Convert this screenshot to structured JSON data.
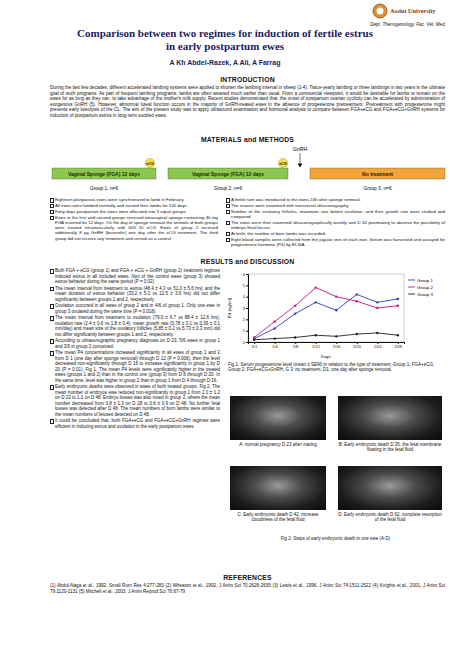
{
  "header": {
    "university": "Assiut University",
    "department": "Dept. Theriogenology, Fac. Vet. Med.",
    "title_lines": [
      "Comparison between two regimes for induction of fertile estrus",
      "in early postpartum ewes"
    ],
    "authors": "A Kh Abdel-Razek, A Ali, A Farrag"
  },
  "introduction": {
    "heading": "INTRODUCTION",
    "text": "During the last few decades, different accelerated lambing systems were applied to shorten the lambing interval in sheep (1-4). Twice-yearly lambing or three lambings in two years is the ultimate goal of such programs. As part of frequent lambing programs, lambs are often weaned much earlier than usual. From a commercial viewpoint, it would be desirable for lambs to remain on the ewes for as long as they can, to take advantage of the mother's milk supply. Recent studies demonstrated that, the onset of postpartum ovarian cyclicity can be accelerated by administration of exogenous GnRH (5). However, abnormal luteal function occurs in the majority of GnRH-treated ewes in the absence of progesterone pretreatment. Pretreatment with progesterone might prevents early luteolysis of the CL. The aim of the present study was to apply ultrasound examination and hormonal analysis to compare between FGA+eCG and FGA+eCG+GnRH systems for induction of postpartum estrus in long-term suckled ewes."
  },
  "methods": {
    "heading": "MATERIALS and METHODS",
    "diagram": {
      "gnrh": "GnRH",
      "ecg": "eCG",
      "boxes": [
        "Vaginal Sponge (FGA) 12 days",
        "Vaginal Sponge (FGA) 12 days",
        "No treatment"
      ],
      "groups": [
        "Group 1, n=6",
        "Group 2, n=6",
        "Group 3, n=6"
      ]
    },
    "left": [
      "Eighteen pluriparous ewes were synchronized to lamb in February.",
      "All ewes were lambed normally and nursed their lambs for 120 days.",
      "Forty days postpartum the ewes were allocated into 3 equal groups.",
      "Ewes in the first and second groups received intravaginal sponge containing 40 mg FGA inserted for 12 days. On the day of sponge removal the animals of both groups were treated intramuscularly with 600 IU eCG. Ewes of group 2 received additionally 8 µg GnRH (buserelin) one day after the eCG treatment. The third group did not receive any treatment and served as a control."
    ],
    "right": [
      "A fertile ram was introduced to the ewes 24h after sponge removal.",
      "The ovaries were examined with transrectal ultrasonography.",
      "Number of the ovulatory follicles, maximum size before ovulation, and their growth rate were studied and compared.",
      "The ewes were then examined ultrasonographically weekly until D 62 postmating to observe the possibility of embryo /fetal losses.",
      "At birth, the number of born lambs was recorded.",
      "Eight blood samples were collected from the jugular vein of each ewe. Serum was harvested and assayed for progesterone hormone (P4) by ELISA."
    ]
  },
  "results": {
    "heading": "RESULTS and DISCUSSION",
    "bullets": [
      "Both FGA + eCG (group 1) and FGA + eCG + GnRH (group 2) treatment regimes induced estrus in all included ewes. Non of the control ewes (group 3) showed estrus behavior during the same period (P = 0.02).",
      "The mean interval from treatment to estrus (48.4 ± 4.3 vs 51.0 ± 5.6 hrs) and the mean duration of estrus behavior (33.2 ± 5.2 vs 22.5 ± 3.6 hrs) did not differ significantly between groups 1 and 2, respectively.",
      "Ovulation occurred in all ewes of group 2 and in 4/6 of group 1. Only one ewe in group 3 ovulated during the same time (P = 0.018).",
      "The mean interval from treatment to ovulation (79.0 ± 6.7 vs 88.4 ± 12.6 hrs), ovulation rate (2.4 ± 0.6 vs 1.8 ± 0.4), mean growth rate (0.78 ± 0.1 vs 0.39 ± 0.1 mm/day) and mean size of the ovulatory follicles (5.85 ± 0.2 vs 5.73 ± 0.3 mm) did not differ significantly between groups 1 and 2, respectively.",
      "According to ultrasonographic pregnancy diagnosis on D 23, 5/6 ewes in group 1 and 3/6 in group 2 conceived.",
      "The mean P4 concentrations increased significantly in all ewes of group 1 and 2 from D 1 (one day after sponge removal) through D 12 (P = 0.006), then the level decreased non-significantly through D 16 to increase significantly in group 1 by D 20 (P = 0.01), Fig 1. The mean P4 levels were significantly higher in the treated ewes (groups 1 and 2) than in the control one (group 3) from D 8 through D 20. In the same time, level was higher in group 2 than in group 1 from D 4 through D 16.",
      "Early embryonic deaths were observed in ewes of both treated groups, Fig 2. The mean number of embryos ewe reduced non-significantly in group 1 from 2.0 ± 1.2 on D 23 to 1.2 on D 48. Embryo losses was also noted in group 2, where the mean number decreased from 0.8 ± 1.3 on D 28 to 0.6 ± 0.9 on D 48. No further fetal losses was detected after D 48. The mean numbers of born lambs were similar to the mean numbers of fetuses detected on D 48.",
      "It could be concluded that, both FGA+eCG and FGA+eCG+GnRH regimes were efficient in inducing estrus and ovulation in the early postpartum ewes."
    ],
    "fig1_caption": "Fig 1: Serum progesterone level (mean ± SEM) in relation to the type of treatment. Group 1: FGA+eCG, Group 2: FGA+eCG+GnRH, G 3: no treatment. D1: one day after sponge removal.",
    "fig2_panels": [
      "A: normal pregnancy D 23 after mating",
      "B: Early embryonic death D 35, the fetal membrane floating in the fetal fluid",
      "C: Early embryonic death D 42, increase cloudiness of the fetal fluid",
      "D: Early embryonic death D 62, complete resorption of the fetal fluid"
    ],
    "fig2_caption": "Fig 2: Steps of early embryonic death in one ewe (A-D)"
  },
  "references": {
    "heading": "REFERENCES",
    "text": "(1) Abdul-Naga et al., 1992, Small Rum Res 4:277-283 (2) Wheaton et al., 1992, J Anim Sci 70:2628-2635 (3) Lewis et al., 1996, J Anim Sci 74:1511-1522 (4) Knights et al., 2001, J Anim Sci 79:1120-1131 (5) Mitchell et al., 2003, J Anim Reprod Sci 76:67-79"
  },
  "chart_data": {
    "type": "line",
    "xlabel": "Days",
    "ylabel": "P4 (ng/ml)",
    "categories": [
      "D1",
      "D4",
      "D8",
      "D12",
      "D16",
      "D20",
      "D24",
      "D28"
    ],
    "series": [
      {
        "name": "Group 1",
        "color": "#2b3fb8",
        "marker": "circle",
        "values": [
          0.3,
          1.2,
          2.5,
          3.5,
          2.8,
          4.2,
          3.5,
          3.8
        ]
      },
      {
        "name": "Group 2",
        "color": "#c0168c",
        "marker": "circle",
        "values": [
          0.4,
          1.8,
          3.2,
          4.8,
          4.0,
          3.6,
          3.0,
          3.2
        ]
      },
      {
        "name": "Group 3",
        "color": "#222222",
        "marker": "circle",
        "values": [
          0.2,
          0.3,
          0.4,
          0.6,
          0.5,
          0.7,
          0.8,
          0.6
        ]
      }
    ],
    "ylim": [
      0,
      6
    ],
    "yticks": [
      0,
      1,
      2,
      3,
      4,
      5,
      6
    ],
    "grid": false,
    "legend": "right"
  }
}
